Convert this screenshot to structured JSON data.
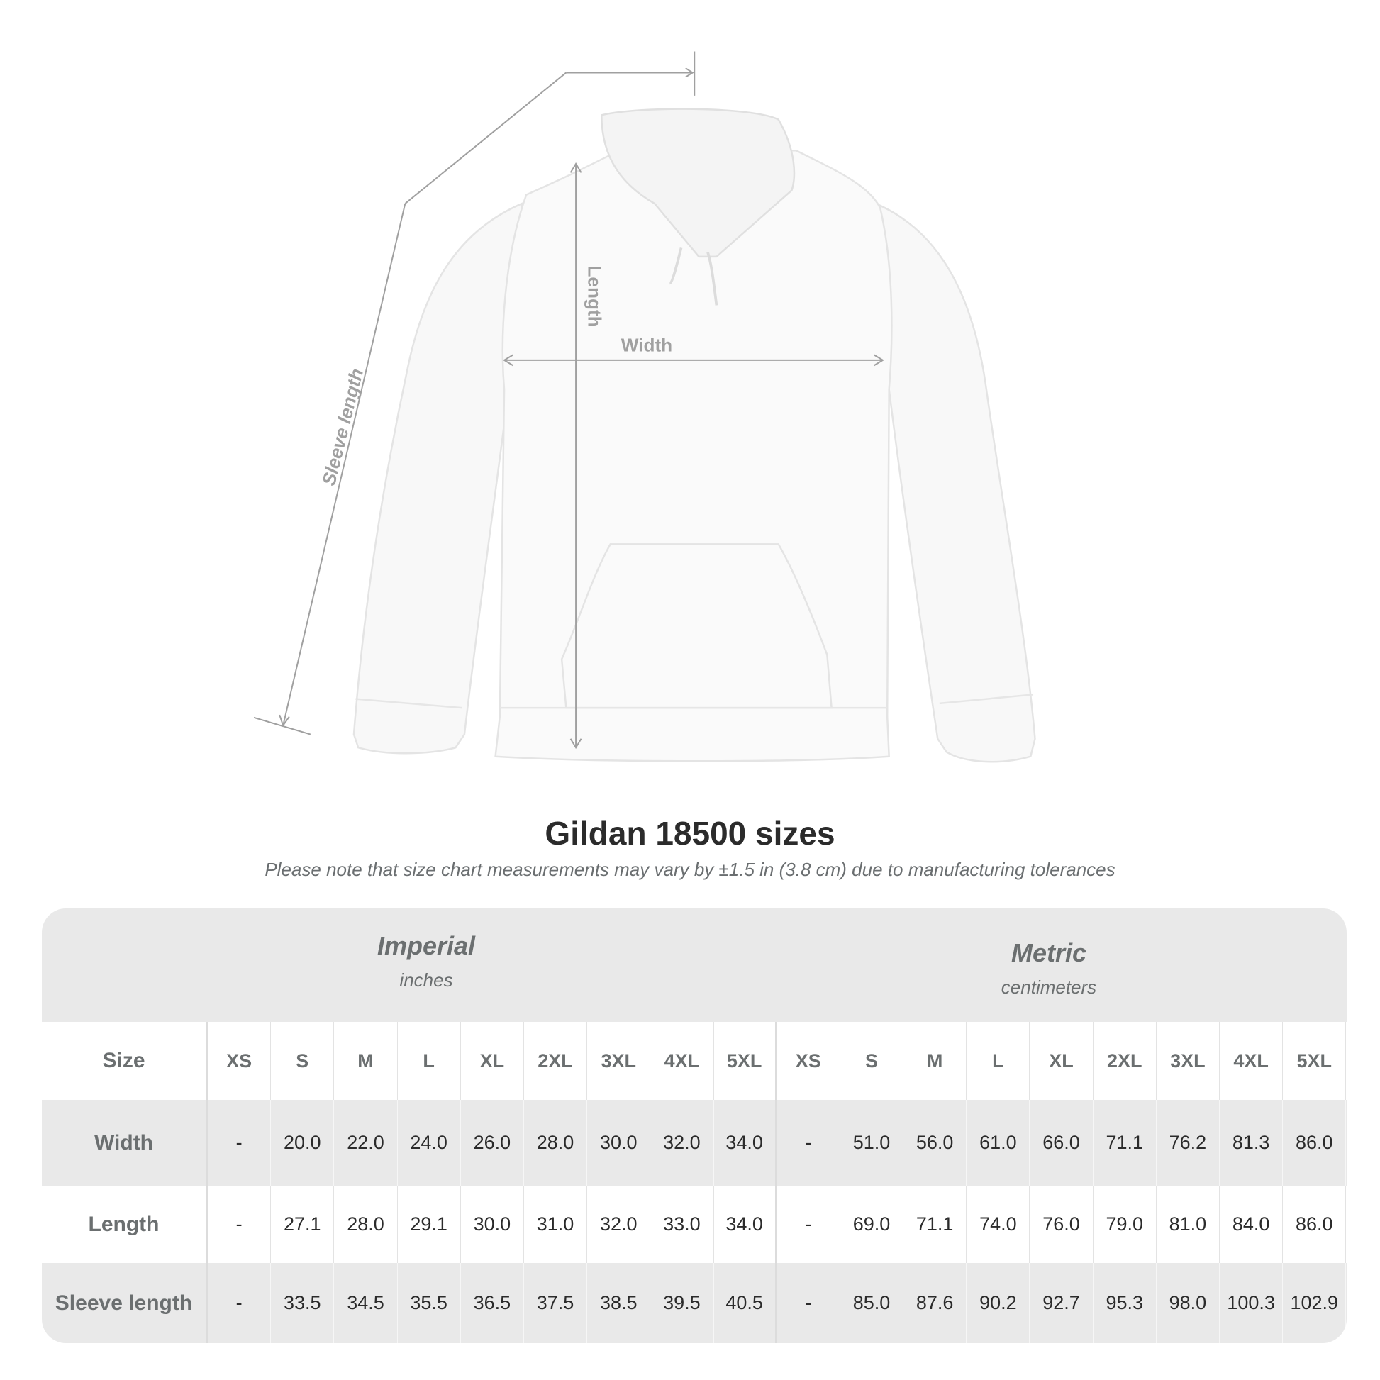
{
  "diagram": {
    "labels": {
      "sleeve": "Sleeve length",
      "length": "Length",
      "width": "Width"
    },
    "line_color": "#a0a0a0"
  },
  "title": "Gildan 18500 sizes",
  "note": "Please note that size chart measurements may vary by ±1.5 in (3.8 cm) due to manufacturing tolerances",
  "table": {
    "imperial": {
      "name": "Imperial",
      "unit": "inches"
    },
    "metric": {
      "name": "Metric",
      "unit": "centimeters"
    },
    "size_label": "Size",
    "sizes": [
      "XS",
      "S",
      "M",
      "L",
      "XL",
      "2XL",
      "3XL",
      "4XL",
      "5XL"
    ],
    "rows": [
      {
        "label": "Width",
        "imperial": [
          "-",
          "20.0",
          "22.0",
          "24.0",
          "26.0",
          "28.0",
          "30.0",
          "32.0",
          "34.0"
        ],
        "metric": [
          "-",
          "51.0",
          "56.0",
          "61.0",
          "66.0",
          "71.1",
          "76.2",
          "81.3",
          "86.0"
        ]
      },
      {
        "label": "Length",
        "imperial": [
          "-",
          "27.1",
          "28.0",
          "29.1",
          "30.0",
          "31.0",
          "32.0",
          "33.0",
          "34.0"
        ],
        "metric": [
          "-",
          "69.0",
          "71.1",
          "74.0",
          "76.0",
          "79.0",
          "81.0",
          "84.0",
          "86.0"
        ]
      },
      {
        "label": "Sleeve length",
        "imperial": [
          "-",
          "33.5",
          "34.5",
          "35.5",
          "36.5",
          "37.5",
          "38.5",
          "39.5",
          "40.5"
        ],
        "metric": [
          "-",
          "85.0",
          "87.6",
          "90.2",
          "92.7",
          "95.3",
          "98.0",
          "100.3",
          "102.9"
        ]
      }
    ],
    "colors": {
      "header_bg": "#e9e9e9",
      "label_text": "#6b6f70",
      "value_text": "#2b2b2b"
    }
  }
}
